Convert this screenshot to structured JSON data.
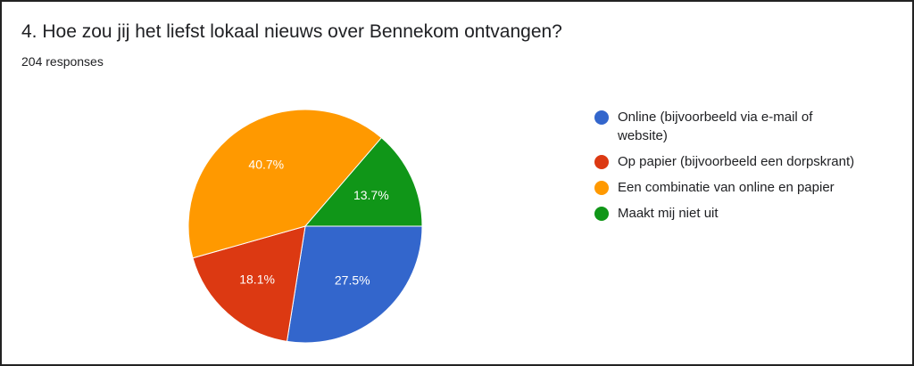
{
  "chart_data": {
    "type": "pie",
    "title": "4. Hoe zou jij het liefst lokaal nieuws over Bennekom ontvangen?",
    "subtitle": "204 responses",
    "categories": [
      "Online (bijvoorbeeld via e-mail of website)",
      "Op papier (bijvoorbeeld een dorpskrant)",
      "Een combinatie van online en papier",
      "Maakt mij niet uit"
    ],
    "values": [
      27.5,
      18.1,
      40.7,
      13.7
    ],
    "value_labels": [
      "27.5%",
      "18.1%",
      "40.7%",
      "13.7%"
    ],
    "colors": [
      "#3366cc",
      "#dc3912",
      "#ff9900",
      "#109618"
    ]
  }
}
